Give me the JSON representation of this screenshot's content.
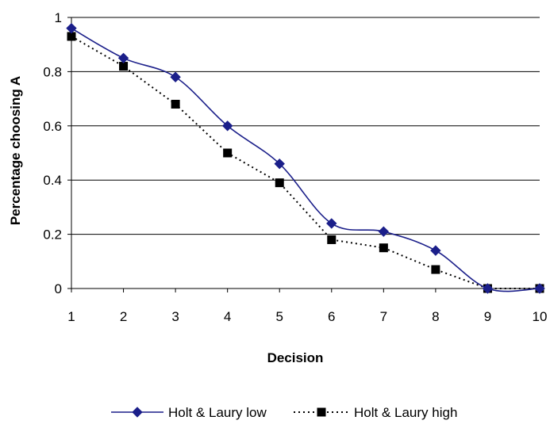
{
  "chart_data": {
    "type": "line",
    "xlabel": "Decision",
    "ylabel": "Percentage choosing A",
    "x": [
      1,
      2,
      3,
      4,
      5,
      6,
      7,
      8,
      9,
      10
    ],
    "xticks": [
      "1",
      "2",
      "3",
      "4",
      "5",
      "6",
      "7",
      "8",
      "9",
      "10"
    ],
    "yticks": [
      "0",
      "0.2",
      "0.4",
      "0.6",
      "0.8",
      "1"
    ],
    "ytick_values": [
      0,
      0.2,
      0.4,
      0.6,
      0.8,
      1
    ],
    "ylim": [
      0,
      1
    ],
    "grid": "horizontal",
    "legend_position": "bottom",
    "series": [
      {
        "name": "Holt & Laury low",
        "values": [
          0.96,
          0.85,
          0.78,
          0.6,
          0.46,
          0.24,
          0.21,
          0.14,
          0.0,
          0.0
        ],
        "color": "#1b1f8a",
        "line_style": "solid",
        "smooth": true,
        "marker": "diamond"
      },
      {
        "name": "Holt & Laury high",
        "values": [
          0.93,
          0.82,
          0.68,
          0.5,
          0.39,
          0.18,
          0.15,
          0.07,
          0.0,
          0.0
        ],
        "color": "#000000",
        "line_style": "dotted",
        "smooth": false,
        "marker": "square"
      }
    ]
  }
}
